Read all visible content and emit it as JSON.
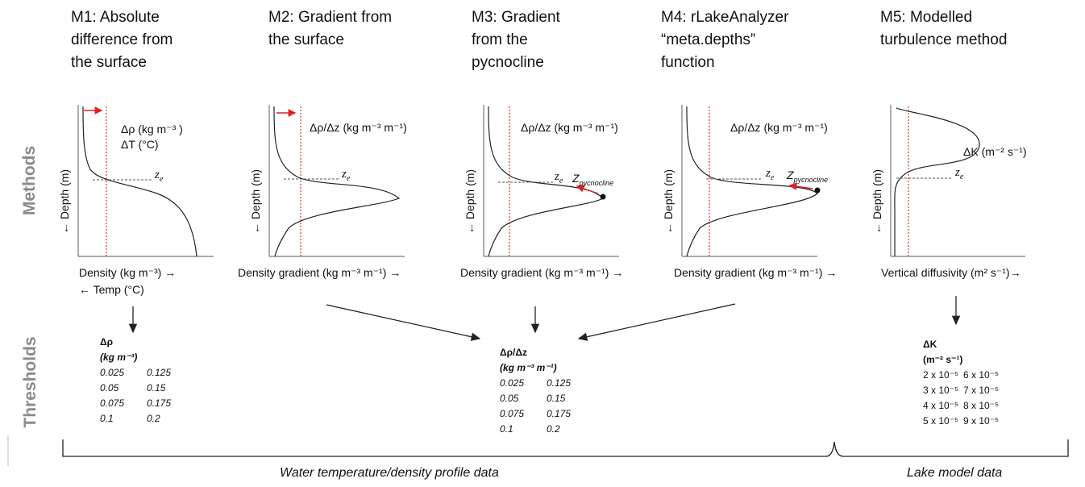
{
  "titles": {
    "m1": "M1: Absolute\ndifference from\nthe surface",
    "m2": "M2: Gradient from\nthe surface",
    "m3": "M3: Gradient\nfrom the\npycnocline",
    "m4": "M4: rLakeAnalyzer\n“meta.depths”\nfunction",
    "m5": "M5: Modelled\nturbulence method"
  },
  "row_labels": {
    "methods": "Methods",
    "thresholds": "Thresholds"
  },
  "axis": {
    "depth": "← Depth (m)",
    "m1_x": "Density (kg m⁻³) →",
    "m1_x2": "← Temp (°C)",
    "gradient_x": "Density gradient (kg m⁻³ m⁻¹) →",
    "m5_x": "Vertical diffusivity (m² s⁻¹)→"
  },
  "annotations": {
    "m1_a": "Δρ (kg m⁻³ )",
    "m1_b": "ΔT (°C)",
    "grad": "Δρ/Δz (kg m⁻³ m⁻¹)",
    "ze": "z",
    "ze_sub": "e",
    "zp": "Z",
    "zp_sub": "pycnocline",
    "m5": "ΔK (m⁻² s⁻¹)"
  },
  "thresholds": {
    "density": {
      "head1": "Δρ",
      "head2": "(kg m⁻³)",
      "values": [
        "0.025",
        "0.125",
        "0.05",
        "0.15",
        "0.075",
        "0.175",
        "0.1",
        "0.2"
      ]
    },
    "gradient": {
      "head1": "Δρ/Δz",
      "head2": "(kg m⁻³ m⁻¹)",
      "values": [
        "0.025",
        "0.125",
        "0.05",
        "0.15",
        "0.075",
        "0.175",
        "0.1",
        "0.2"
      ]
    },
    "diffusivity": {
      "head1": "ΔK",
      "head2": "(m⁻² s⁻¹)",
      "values": [
        "2 x 10⁻⁵",
        "6 x 10⁻⁵",
        "3 x 10⁻⁵",
        "7 x 10⁻⁵",
        "4 x 10⁻⁵",
        "8 x 10⁻⁵",
        "5 x 10⁻⁵",
        "9 x 10⁻⁵"
      ]
    }
  },
  "footer": {
    "profile": "Water temperature/density profile data",
    "model": "Lake model data"
  },
  "colors": {
    "red": "#e02020",
    "line": "#222222",
    "dash": "#555555"
  }
}
